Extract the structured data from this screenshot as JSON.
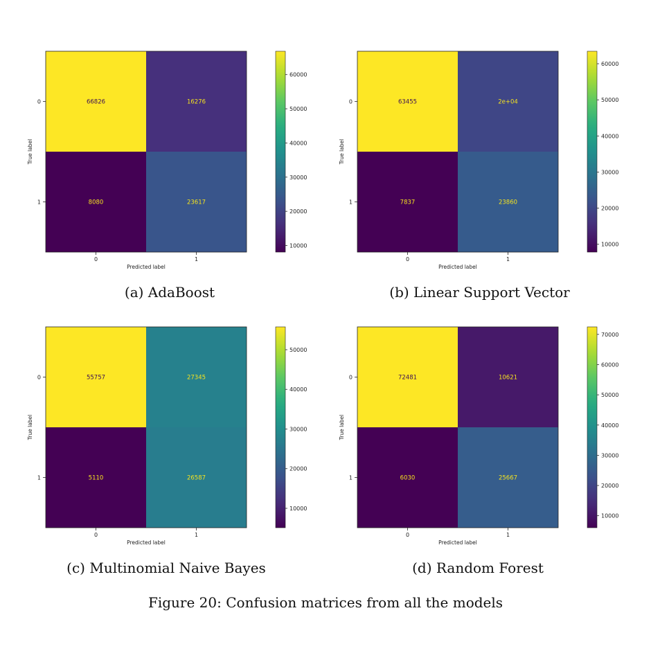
{
  "figure_caption": "Figure 20: Confusion matrices from all the models",
  "chart_data": [
    {
      "type": "heatmap",
      "caption": "(a) AdaBoost",
      "xlabel": "Predicted label",
      "ylabel": "True label",
      "x_ticks": [
        "0",
        "1"
      ],
      "y_ticks": [
        "0",
        "1"
      ],
      "cell_labels": [
        [
          "66826",
          "16276"
        ],
        [
          "8080",
          "23617"
        ]
      ],
      "values": [
        [
          66826,
          16276
        ],
        [
          8080,
          23617
        ]
      ],
      "colorbar_ticks": [
        10000,
        20000,
        30000,
        40000,
        50000,
        60000
      ],
      "colorbar_range": [
        8080,
        66826
      ],
      "colormap": "viridis"
    },
    {
      "type": "heatmap",
      "caption": "(b) Linear Support Vector",
      "xlabel": "Predicted label",
      "ylabel": "True label",
      "x_ticks": [
        "0",
        "1"
      ],
      "y_ticks": [
        "0",
        "1"
      ],
      "cell_labels": [
        [
          "63455",
          "2e+04"
        ],
        [
          "7837",
          "23860"
        ]
      ],
      "values": [
        [
          63455,
          19647
        ],
        [
          7837,
          23860
        ]
      ],
      "colorbar_ticks": [
        10000,
        20000,
        30000,
        40000,
        50000,
        60000
      ],
      "colorbar_range": [
        7837,
        63455
      ],
      "colormap": "viridis"
    },
    {
      "type": "heatmap",
      "caption": "(c) Multinomial Naive Bayes",
      "xlabel": "Predicted label",
      "ylabel": "True label",
      "x_ticks": [
        "0",
        "1"
      ],
      "y_ticks": [
        "0",
        "1"
      ],
      "cell_labels": [
        [
          "55757",
          "27345"
        ],
        [
          "5110",
          "26587"
        ]
      ],
      "values": [
        [
          55757,
          27345
        ],
        [
          5110,
          26587
        ]
      ],
      "colorbar_ticks": [
        10000,
        20000,
        30000,
        40000,
        50000
      ],
      "colorbar_range": [
        5110,
        55757
      ],
      "colormap": "viridis"
    },
    {
      "type": "heatmap",
      "caption": "(d) Random Forest",
      "xlabel": "Predicted label",
      "ylabel": "True label",
      "x_ticks": [
        "0",
        "1"
      ],
      "y_ticks": [
        "0",
        "1"
      ],
      "cell_labels": [
        [
          "72481",
          "10621"
        ],
        [
          "6030",
          "25667"
        ]
      ],
      "values": [
        [
          72481,
          10621
        ],
        [
          6030,
          25667
        ]
      ],
      "colorbar_ticks": [
        10000,
        20000,
        30000,
        40000,
        50000,
        60000,
        70000
      ],
      "colorbar_range": [
        6030,
        72481
      ],
      "colormap": "viridis"
    }
  ]
}
